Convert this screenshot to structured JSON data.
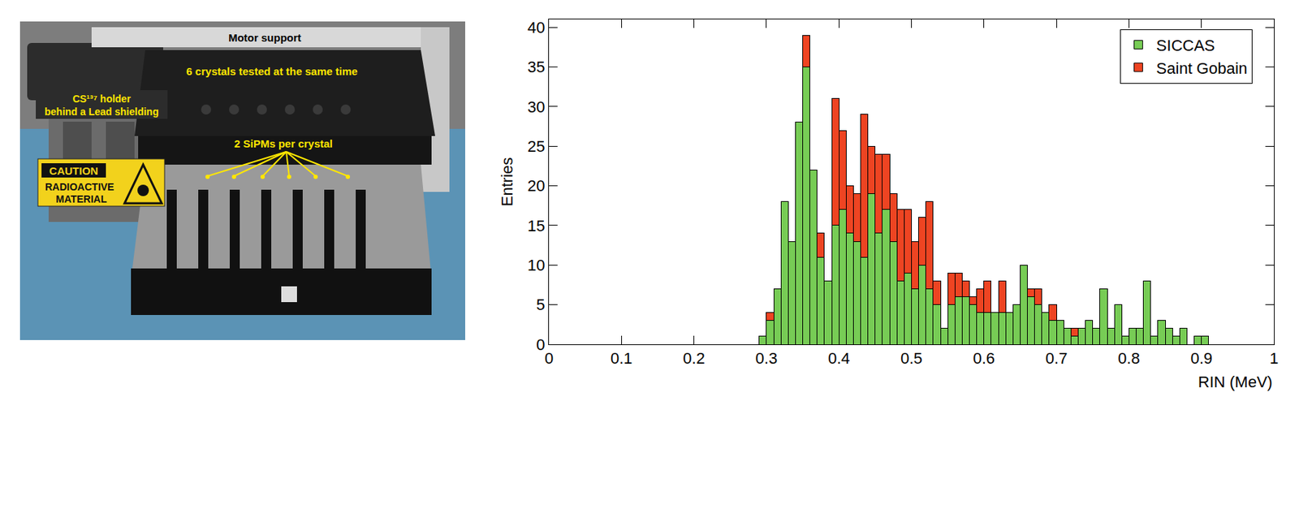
{
  "photo": {
    "labels": {
      "motor": "Motor support",
      "crystals": "6 crystals tested at the same time",
      "source": [
        "CS¹³⁷ holder",
        "behind a Lead shielding"
      ],
      "sipm": "2 SiPMs per crystal"
    },
    "sign": [
      "CAUTION",
      "RADIOACTIVE",
      "MATERIAL"
    ]
  },
  "chart_data": {
    "type": "histogram",
    "stacked": true,
    "xlabel": "RIN (MeV)",
    "ylabel": "Entries",
    "xlim": [
      0,
      1
    ],
    "xticks": [
      0,
      0.1,
      0.2,
      0.3,
      0.4,
      0.5,
      0.6,
      0.7,
      0.8,
      0.9,
      1
    ],
    "ylim": [
      0,
      41
    ],
    "yticks": [
      0,
      5,
      10,
      15,
      20,
      25,
      30,
      35,
      40
    ],
    "legend": "top right",
    "grid": false,
    "bins": [
      0.29,
      0.3,
      0.31,
      0.32,
      0.33,
      0.34,
      0.35,
      0.36,
      0.37,
      0.38,
      0.39,
      0.4,
      0.41,
      0.42,
      0.43,
      0.44,
      0.45,
      0.46,
      0.47,
      0.48,
      0.49,
      0.5,
      0.51,
      0.52,
      0.53,
      0.54,
      0.55,
      0.56,
      0.57,
      0.58,
      0.59,
      0.6,
      0.61,
      0.62,
      0.63,
      0.64,
      0.65,
      0.66,
      0.67,
      0.68,
      0.69,
      0.7,
      0.71,
      0.72,
      0.73,
      0.74,
      0.75,
      0.76,
      0.77,
      0.78,
      0.79,
      0.8,
      0.81,
      0.82,
      0.83,
      0.84,
      0.85,
      0.86,
      0.87,
      0.88,
      0.89,
      0.9,
      0.91
    ],
    "series": [
      {
        "name": "SICCAS",
        "color": "#77cc55",
        "values": [
          1,
          3,
          7,
          18,
          13,
          28,
          35,
          22,
          11,
          8,
          15,
          17,
          14,
          13,
          11,
          19,
          14,
          17,
          13,
          8,
          9,
          7,
          10,
          7,
          5,
          2,
          5,
          6,
          6,
          5,
          4,
          4,
          4,
          4,
          4,
          5,
          10,
          6,
          5,
          4,
          3,
          3,
          2,
          1,
          2,
          3,
          2,
          7,
          2,
          5,
          1,
          2,
          2,
          8,
          1,
          3,
          2,
          1,
          2,
          0,
          1,
          1
        ]
      },
      {
        "name": "Saint Gobain",
        "color": "#ee4422",
        "values": [
          0,
          1,
          0,
          0,
          0,
          0,
          4,
          0,
          3,
          0,
          16,
          10,
          6,
          6,
          18,
          6,
          10,
          7,
          6,
          9,
          8,
          6,
          6,
          11,
          3,
          0,
          4,
          3,
          2,
          1,
          3,
          4,
          0,
          4,
          0,
          0,
          0,
          1,
          2,
          0,
          2,
          0,
          0,
          1,
          0,
          0,
          0,
          0,
          0,
          0,
          0,
          0,
          0,
          0,
          0,
          0,
          0,
          0,
          0,
          0,
          0,
          0
        ]
      }
    ]
  }
}
